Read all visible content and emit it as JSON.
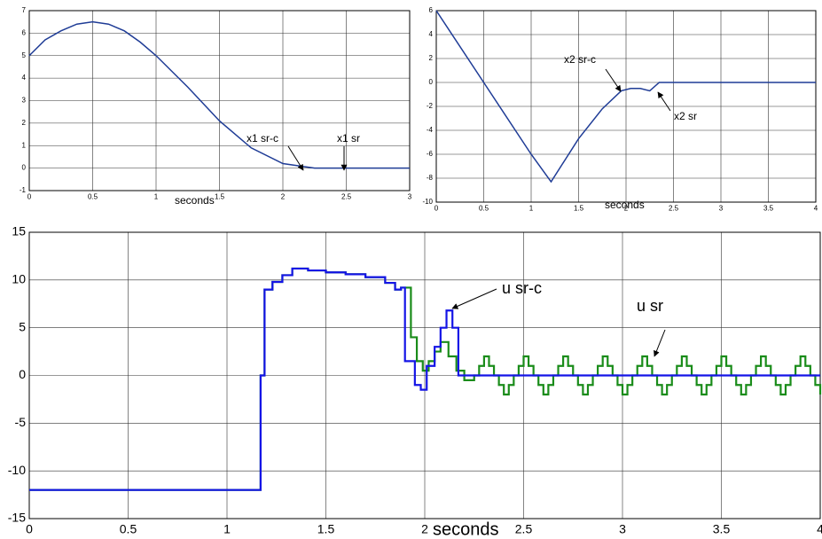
{
  "chart_data": [
    {
      "type": "line",
      "xlabel": "seconds",
      "xlim": [
        0,
        3
      ],
      "ylim": [
        -1,
        7
      ],
      "xticks": [
        0,
        0.5,
        1,
        1.5,
        2,
        2.5,
        3
      ],
      "yticks": [
        -1,
        0,
        1,
        2,
        3,
        4,
        5,
        6,
        7
      ],
      "grid": true,
      "series": [
        {
          "color": "#1f3c96",
          "x": [
            0,
            0.125,
            0.25,
            0.375,
            0.5,
            0.625,
            0.75,
            0.875,
            1,
            1.25,
            1.5,
            1.75,
            2,
            2.25,
            3
          ],
          "values": [
            5,
            5.7,
            6.1,
            6.4,
            6.5,
            6.4,
            6.1,
            5.6,
            5,
            3.6,
            2.1,
            0.9,
            0.2,
            0,
            0
          ]
        }
      ],
      "annotations": [
        "x1 sr-c",
        "x1 sr"
      ]
    },
    {
      "type": "line",
      "xlabel": "seconds",
      "xlim": [
        0,
        4
      ],
      "ylim": [
        -10,
        6
      ],
      "xticks": [
        0,
        0.5,
        1,
        1.5,
        2,
        2.5,
        3,
        3.5,
        4
      ],
      "yticks": [
        -10,
        -8,
        -6,
        -4,
        -2,
        0,
        2,
        4,
        6
      ],
      "grid": true,
      "series": [
        {
          "color": "#1f3c96",
          "x": [
            0,
            0.5,
            1,
            1.21,
            1.5,
            1.75,
            1.95,
            2.05,
            2.15,
            2.25,
            2.35,
            4
          ],
          "values": [
            6,
            0,
            -6,
            -8.3,
            -4.7,
            -2.2,
            -0.7,
            -0.5,
            -0.5,
            -0.7,
            0,
            0
          ]
        }
      ],
      "annotations": [
        "x2 sr-c",
        "x2 sr"
      ]
    },
    {
      "type": "line",
      "step": true,
      "xlabel": "seconds",
      "xlim": [
        0,
        4
      ],
      "ylim": [
        -15,
        15
      ],
      "xticks": [
        0,
        0.5,
        1,
        1.5,
        2,
        2.5,
        3,
        3.5,
        4
      ],
      "yticks": [
        -15,
        -10,
        -5,
        0,
        5,
        10,
        15
      ],
      "grid": true,
      "series": [
        {
          "color": "#1a8c1a",
          "x": [
            0,
            1.17,
            1.19,
            1.23,
            1.28,
            1.33,
            1.41,
            1.5,
            1.6,
            1.7,
            1.8,
            1.85,
            1.88,
            1.93,
            1.96,
            1.99,
            2.02,
            2.05,
            2.08,
            2.12,
            2.16,
            2.2,
            2.25,
            2.275,
            2.3,
            2.325,
            2.35,
            2.375,
            2.4,
            2.425,
            2.45,
            2.475,
            2.5,
            2.525,
            2.55,
            2.575,
            2.6,
            2.625,
            2.65,
            2.675,
            2.7,
            2.725,
            2.75,
            2.775,
            2.8,
            2.825,
            2.85,
            2.875,
            2.9,
            2.925,
            2.95,
            2.975,
            3,
            3.025,
            3.05,
            3.075,
            3.1,
            3.125,
            3.15,
            3.175,
            3.2,
            3.225,
            3.25,
            3.275,
            3.3,
            3.325,
            3.35,
            3.375,
            3.4,
            3.425,
            3.45,
            3.475,
            3.5,
            3.525,
            3.55,
            3.575,
            3.6,
            3.625,
            3.65,
            3.675,
            3.7,
            3.725,
            3.75,
            3.775,
            3.8,
            3.825,
            3.85,
            3.875,
            3.9,
            3.925,
            3.95,
            3.975,
            4
          ],
          "values": [
            -12,
            0,
            9,
            9.8,
            10.5,
            11.2,
            11,
            10.8,
            10.6,
            10.3,
            9.7,
            9,
            9.2,
            4,
            1.5,
            0.5,
            1.5,
            2.5,
            3.5,
            2,
            0.5,
            -0.5,
            0,
            1,
            2,
            1,
            0,
            -1,
            -2,
            -1,
            0,
            1,
            2,
            1,
            0,
            -1,
            -2,
            -1,
            0,
            1,
            2,
            1,
            0,
            -1,
            -2,
            -1,
            0,
            1,
            2,
            1,
            0,
            -1,
            -2,
            -1,
            0,
            1,
            2,
            1,
            0,
            -1,
            -2,
            -1,
            0,
            1,
            2,
            1,
            0,
            -1,
            -2,
            -1,
            0,
            1,
            2,
            1,
            0,
            -1,
            -2,
            -1,
            0,
            1,
            2,
            1,
            0,
            -1,
            -2,
            -1,
            0,
            1,
            2,
            1,
            0,
            -1,
            -2
          ]
        },
        {
          "color": "#1414e6",
          "x": [
            0,
            1.17,
            1.19,
            1.23,
            1.28,
            1.33,
            1.41,
            1.5,
            1.6,
            1.7,
            1.8,
            1.85,
            1.88,
            1.9,
            1.95,
            1.98,
            2.01,
            2.05,
            2.08,
            2.11,
            2.14,
            2.17,
            4
          ],
          "values": [
            -12,
            0,
            9,
            9.8,
            10.5,
            11.2,
            11,
            10.8,
            10.6,
            10.3,
            9.7,
            9,
            9.2,
            1.5,
            -1,
            -1.5,
            1,
            3,
            5,
            6.8,
            5,
            0,
            0
          ]
        }
      ],
      "annotations": [
        "u sr-c",
        "u sr"
      ]
    }
  ]
}
